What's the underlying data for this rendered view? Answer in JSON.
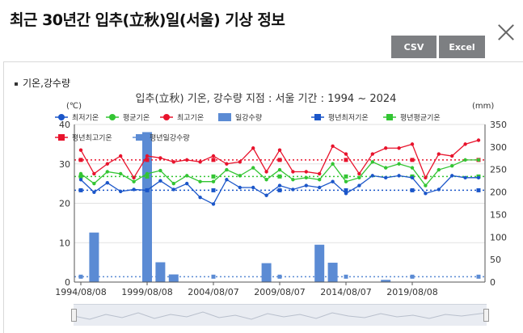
{
  "header": {
    "title": "최근 30년간 입추(立秋)일(서울) 기상 정보",
    "csv_label": "CSV",
    "excel_label": "Excel"
  },
  "section": {
    "label": "기온,강수량"
  },
  "chart_data": {
    "type": "line",
    "title": "입추(立秋) 기온, 강수량  지점 : 서울 기간 : 1994 ~ 2024",
    "y_left_label": "(℃)",
    "y_right_label": "(mm)",
    "y_left_range": [
      0,
      40
    ],
    "y_left_ticks": [
      0,
      10,
      20,
      30,
      40
    ],
    "y_right_range": [
      0,
      350
    ],
    "y_right_ticks": [
      0,
      50,
      100,
      150,
      200,
      250,
      300,
      350
    ],
    "x_tick_labels": [
      "1994/08/08",
      "1999/08/08",
      "2004/08/07",
      "2009/08/07",
      "2014/08/07",
      "2019/08/08"
    ],
    "x_tick_years": [
      1994,
      1999,
      2004,
      2009,
      2014,
      2019
    ],
    "grid": true,
    "legend_position": "top",
    "years": [
      1994,
      1995,
      1996,
      1997,
      1998,
      1999,
      2000,
      2001,
      2002,
      2003,
      2004,
      2005,
      2006,
      2007,
      2008,
      2009,
      2010,
      2011,
      2012,
      2013,
      2014,
      2015,
      2016,
      2017,
      2018,
      2019,
      2020,
      2021,
      2022,
      2023,
      2024
    ],
    "series": [
      {
        "name": "최저기온",
        "kind": "line",
        "axis": "left",
        "color": "#1b56c9",
        "values": [
          26.0,
          22.8,
          25.2,
          23.0,
          23.5,
          23.3,
          25.7,
          23.5,
          25.0,
          21.5,
          19.8,
          26.0,
          24.0,
          24.0,
          22.0,
          24.5,
          23.5,
          24.5,
          24.0,
          25.5,
          22.5,
          24.5,
          27.0,
          26.5,
          27.0,
          26.5,
          22.5,
          23.5,
          27.0,
          26.5,
          26.5
        ]
      },
      {
        "name": "평균기온",
        "kind": "line",
        "axis": "left",
        "color": "#33c533",
        "values": [
          27.5,
          25.0,
          28.0,
          27.5,
          25.5,
          27.5,
          28.3,
          25.0,
          27.0,
          25.5,
          25.5,
          28.5,
          27.0,
          29.0,
          26.0,
          28.5,
          26.0,
          26.5,
          26.0,
          30.0,
          25.5,
          26.5,
          30.5,
          29.0,
          30.0,
          29.0,
          24.5,
          28.5,
          29.5,
          31.0,
          31.0
        ]
      },
      {
        "name": "최고기온",
        "kind": "line",
        "axis": "left",
        "color": "#e8132c",
        "values": [
          33.5,
          27.5,
          30.0,
          32.0,
          26.5,
          32.0,
          31.5,
          30.5,
          31.0,
          30.5,
          32.0,
          30.0,
          30.5,
          34.0,
          28.0,
          33.5,
          28.0,
          28.0,
          27.5,
          34.5,
          32.5,
          27.5,
          32.5,
          34.0,
          34.0,
          35.0,
          26.5,
          32.5,
          32.0,
          35.0,
          36.0
        ]
      },
      {
        "name": "일강수량",
        "kind": "bar",
        "axis": "right",
        "color": "#5b8bd4",
        "values": [
          0,
          110,
          0,
          0,
          0,
          333,
          44,
          17,
          0,
          0,
          0,
          0,
          0,
          0,
          42,
          0,
          0,
          0,
          83,
          43,
          0,
          0,
          0,
          5,
          0,
          0,
          0,
          0,
          0,
          0,
          0
        ]
      },
      {
        "name": "평년최저기온",
        "kind": "normal",
        "axis": "left",
        "color": "#1b56c9",
        "value": 23.3
      },
      {
        "name": "평년평균기온",
        "kind": "normal",
        "axis": "left",
        "color": "#33c533",
        "value": 26.8
      },
      {
        "name": "평년최고기온",
        "kind": "normal",
        "axis": "left",
        "color": "#e8132c",
        "value": 31.0
      },
      {
        "name": "평년일강수량",
        "kind": "normal",
        "axis": "right",
        "color": "#5b8bd4",
        "value": 12
      }
    ]
  }
}
